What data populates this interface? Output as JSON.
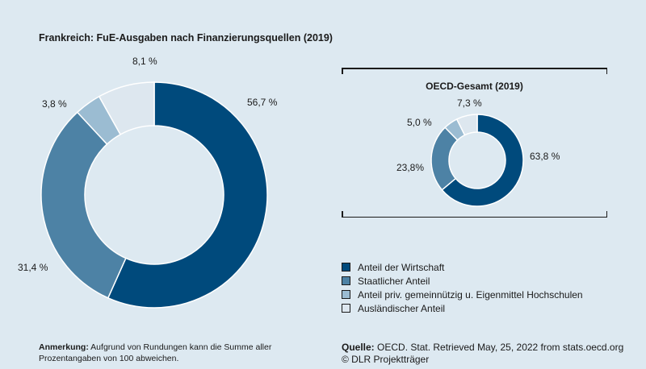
{
  "chart_data": [
    {
      "type": "pie",
      "title": "Frankreich: FuE-Ausgaben nach Finanzierungsquellen (2019)",
      "categories": [
        "Anteil der Wirtschaft",
        "Staatlicher Anteil",
        "Anteil priv. gemeinnützig u. Eigenmittel Hochschulen",
        "Ausländischer Anteil"
      ],
      "values": [
        56.7,
        31.4,
        3.8,
        8.1
      ],
      "labels": [
        "56,7 %",
        "31,4 %",
        "3,8 %",
        "8,1 %"
      ],
      "colors": [
        "#004a7c",
        "#4d82a5",
        "#9bbcd2",
        "#dde7ef"
      ],
      "style": "donut"
    },
    {
      "type": "pie",
      "title": "OECD-Gesamt (2019)",
      "categories": [
        "Anteil der Wirtschaft",
        "Staatlicher Anteil",
        "Anteil priv. gemeinnützig u. Eigenmittel Hochschulen",
        "Ausländischer Anteil"
      ],
      "values": [
        63.8,
        23.8,
        5.0,
        7.3
      ],
      "labels": [
        "63,8 %",
        "23,8%",
        "5,0 %",
        "7,3 %"
      ],
      "colors": [
        "#004a7c",
        "#4d82a5",
        "#9bbcd2",
        "#dde7ef"
      ],
      "style": "donut"
    }
  ],
  "legend": [
    {
      "label": "Anteil der Wirtschaft",
      "color": "#004a7c"
    },
    {
      "label": "Staatlicher Anteil",
      "color": "#4d82a5"
    },
    {
      "label": "Anteil priv. gemeinnützig u. Eigenmittel Hochschulen",
      "color": "#9bbcd2"
    },
    {
      "label": "Ausländischer Anteil",
      "color": "#dde7ef"
    }
  ],
  "note": {
    "bold": "Anmerkung:",
    "text": " Aufgrund von Rundungen kann die Summe aller Prozentangaben von 100 abweichen."
  },
  "source": {
    "bold": "Quelle:",
    "text": " OECD. Stat. Retrieved May, 25, 2022 from stats.oecd.org",
    "copyright": "© DLR Projektträger"
  }
}
